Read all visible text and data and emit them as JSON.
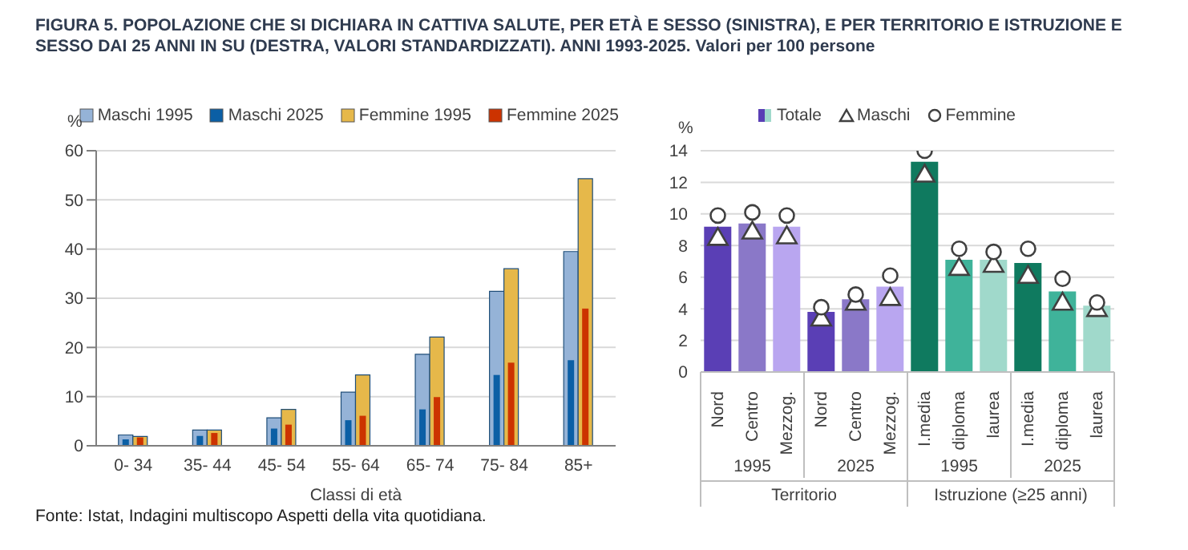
{
  "chart_data": [
    {
      "type": "bar",
      "title": "FIGURA 5. POPOLAZIONE CHE SI DICHIARA IN CATTIVA SALUTE, PER ETÀ E SESSO (SINISTRA), E PER TERRITORIO E ISTRUZIONE E SESSO DAI 25 ANNI IN SU (DESTRA, VALORI STANDARDIZZATI). ANNI 1993-2025. Valori per 100 persone",
      "ylabel": "%",
      "xlabel": "Classi di età",
      "categories": [
        "0-  34",
        "35-  44",
        "45-  54",
        "55-  64",
        "65-  74",
        "75-  84",
        "85+"
      ],
      "series": [
        {
          "name": "Maschi 1995",
          "color": "#95b3d7",
          "values": [
            2.2,
            3.2,
            5.7,
            10.9,
            18.6,
            31.4,
            39.5
          ]
        },
        {
          "name": "Maschi 2025",
          "color": "#0b5fa5",
          "values": [
            1.3,
            2.0,
            3.5,
            5.2,
            7.4,
            14.4,
            17.4
          ]
        },
        {
          "name": "Femmine 1995",
          "color": "#e6b84a",
          "values": [
            1.9,
            3.2,
            7.4,
            14.4,
            22.1,
            36.0,
            54.3
          ]
        },
        {
          "name": "Femmine 2025",
          "color": "#cc3300",
          "values": [
            1.7,
            2.6,
            4.3,
            6.1,
            9.9,
            16.9,
            27.9
          ]
        }
      ],
      "ylim": [
        0,
        60
      ],
      "yticks": [
        0,
        10,
        20,
        30,
        40,
        50,
        60
      ],
      "grid": "y",
      "legend": "top right",
      "annotations": [
        "Fonte: Istat, Indagini multiscopo Aspetti della vita quotidiana."
      ]
    },
    {
      "type": "bar",
      "ylabel": "%",
      "categories": [
        "Nord",
        "Centro",
        "Mezzog.",
        "Nord",
        "Centro",
        "Mezzog.",
        "I.media",
        "diploma",
        "laurea",
        "I.media",
        "diploma",
        "laurea"
      ],
      "series": [
        {
          "name": "Totale",
          "colors": [
            "#5a3fb5",
            "#8a78c8",
            "#b9a6f0",
            "#5a3fb5",
            "#8a78c8",
            "#b9a6f0",
            "#0f7a5f",
            "#3fb39a",
            "#a0d9cb",
            "#0f7a5f",
            "#3fb39a",
            "#a0d9cb"
          ],
          "values": [
            9.2,
            9.4,
            9.2,
            3.8,
            4.6,
            5.4,
            13.3,
            7.1,
            7.1,
            6.9,
            5.1,
            4.2
          ]
        },
        {
          "name": "Maschi",
          "type": "scatter",
          "marker": "triangle",
          "color": "#404040",
          "values": [
            8.4,
            8.8,
            8.5,
            3.3,
            4.3,
            4.6,
            12.4,
            6.5,
            6.7,
            6.0,
            4.3,
            3.9
          ]
        },
        {
          "name": "Femmine",
          "type": "scatter",
          "marker": "circle",
          "color": "#404040",
          "values": [
            9.9,
            10.1,
            9.9,
            4.1,
            4.9,
            6.1,
            14.0,
            7.8,
            7.6,
            7.8,
            5.9,
            4.4
          ]
        }
      ],
      "ylim": [
        0,
        14
      ],
      "yticks": [
        0,
        2,
        4,
        6,
        8,
        10,
        12,
        14
      ],
      "grid": "y",
      "legend": "top",
      "annotations": [
        "1995",
        "2025",
        "1995",
        "2025",
        "Territorio",
        "Istruzione (≥25 anni)"
      ]
    }
  ]
}
